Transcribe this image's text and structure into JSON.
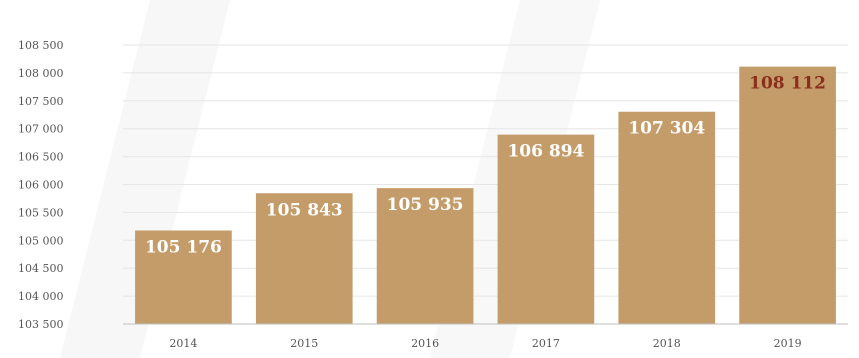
{
  "chart_data": {
    "type": "bar",
    "categories": [
      "2014",
      "2015",
      "2016",
      "2017",
      "2018",
      "2019"
    ],
    "values": [
      105176,
      105843,
      105935,
      106894,
      107304,
      108112
    ],
    "data_labels": [
      "105 176",
      "105 843",
      "105 935",
      "106 894",
      "107 304",
      "108 112"
    ],
    "ylim": [
      103500,
      108500
    ],
    "yticks": [
      103500,
      104000,
      104500,
      105000,
      105500,
      106000,
      106500,
      107000,
      107500,
      108000,
      108500
    ],
    "ytick_labels": [
      "103 500",
      "104 000",
      "104 500",
      "105 000",
      "105 500",
      "106 000",
      "106 500",
      "107 000",
      "107 500",
      "108 000",
      "108 500"
    ],
    "title": "",
    "xlabel": "",
    "ylabel": "",
    "grid": true,
    "legend": "none",
    "colors": {
      "bar": "#c49c6a",
      "label": "#ffffff",
      "highlight_label": "#8b2e1d",
      "grid": "#e6e6e6",
      "axis": "#bfbfbf"
    },
    "highlight_index": 5
  }
}
